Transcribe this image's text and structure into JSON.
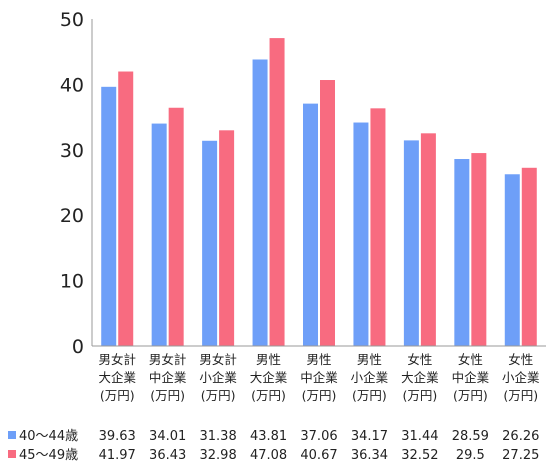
{
  "chart_data": {
    "type": "bar",
    "categories": [
      [
        "男女計",
        "大企業",
        "(万円)"
      ],
      [
        "男女計",
        "中企業",
        "(万円)"
      ],
      [
        "男女計",
        "小企業",
        "(万円)"
      ],
      [
        "男性",
        "大企業",
        "(万円)"
      ],
      [
        "男性",
        "中企業",
        "(万円)"
      ],
      [
        "男性",
        "小企業",
        "(万円)"
      ],
      [
        "女性",
        "大企業",
        "(万円)"
      ],
      [
        "女性",
        "中企業",
        "(万円)"
      ],
      [
        "女性",
        "小企業",
        "(万円)"
      ]
    ],
    "series": [
      {
        "name": "40～44歳",
        "color": "#6e9ff8",
        "values": [
          39.63,
          34.01,
          31.38,
          43.81,
          37.06,
          34.17,
          31.44,
          28.59,
          26.26
        ],
        "labels": [
          "39.63",
          "34.01",
          "31.38",
          "43.81",
          "37.06",
          "34.17",
          "31.44",
          "28.59",
          "26.26"
        ]
      },
      {
        "name": "45～49歳",
        "color": "#f86b80",
        "values": [
          41.97,
          36.43,
          32.98,
          47.08,
          40.67,
          36.34,
          32.52,
          29.5,
          27.25
        ],
        "labels": [
          "41.97",
          "36.43",
          "32.98",
          "47.08",
          "40.67",
          "36.34",
          "32.52",
          "29.5",
          "27.25"
        ]
      }
    ],
    "yticks": [
      0,
      10,
      20,
      30,
      40,
      50
    ],
    "ylim": [
      0,
      50
    ],
    "grid": false,
    "legend": "data-table-below"
  }
}
